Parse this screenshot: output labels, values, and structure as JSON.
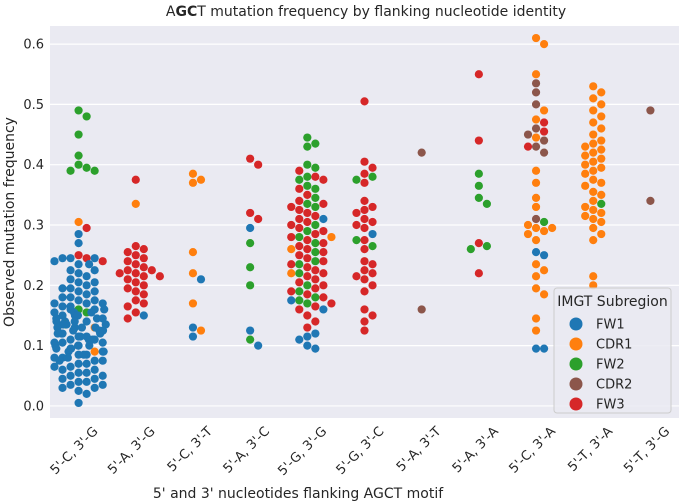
{
  "chart_data": {
    "type": "scatter",
    "subtype": "swarm",
    "title_prefix": "A",
    "title_bold": "GC",
    "title_suffix": "T mutation frequency by flanking nucleotide identity",
    "xlabel": "5' and 3' nucleotides flanking AGCT motif",
    "ylabel": "Observed mutation frequency",
    "ylim": [
      -0.02,
      0.63
    ],
    "yticks": [
      0.0,
      0.1,
      0.2,
      0.3,
      0.4,
      0.5,
      0.6
    ],
    "ytick_labels": [
      "0.0",
      "0.1",
      "0.2",
      "0.3",
      "0.4",
      "0.5",
      "0.6"
    ],
    "categories": [
      "5'-C, 3'-G",
      "5'-A, 3'-G",
      "5'-C, 3'-T",
      "5'-A, 3'-C",
      "5'-G, 3'-G",
      "5'-G, 3'-C",
      "5'-A, 3'-T",
      "5'-A, 3'-A",
      "5'-C, 3'-A",
      "5'-T, 3'-A",
      "5'-T, 3'-G"
    ],
    "legend": {
      "title": "IMGT Subregion",
      "position": "lower-right",
      "entries": [
        {
          "name": "FW1",
          "color": "#1f77b4"
        },
        {
          "name": "CDR1",
          "color": "#ff7f0e"
        },
        {
          "name": "FW2",
          "color": "#2ca02c"
        },
        {
          "name": "CDR2",
          "color": "#8c564b"
        },
        {
          "name": "FW3",
          "color": "#d62728"
        }
      ]
    },
    "grid": true,
    "background": "#eaeaf2",
    "groups": [
      {
        "category": "5'-C, 3'-G",
        "points": [
          {
            "s": "FW2",
            "y": [
              0.49,
              0.48,
              0.45,
              0.415,
              0.4,
              0.395,
              0.39,
              0.39,
              0.16,
              0.155,
              0.135
            ]
          },
          {
            "s": "CDR1",
            "y": [
              0.305,
              0.13,
              0.09
            ]
          },
          {
            "s": "FW3",
            "y": [
              0.295,
              0.25,
              0.245,
              0.24
            ]
          },
          {
            "s": "FW1",
            "y": [
              0.285,
              0.27,
              0.245,
              0.245,
              0.245,
              0.24,
              0.235,
              0.235,
              0.225,
              0.225,
              0.22,
              0.215,
              0.21,
              0.205,
              0.205,
              0.2,
              0.195,
              0.195,
              0.19,
              0.19,
              0.185,
              0.18,
              0.18,
              0.175,
              0.175,
              0.17,
              0.17,
              0.17,
              0.165,
              0.165,
              0.16,
              0.16,
              0.16,
              0.155,
              0.155,
              0.155,
              0.15,
              0.15,
              0.15,
              0.15,
              0.145,
              0.145,
              0.145,
              0.14,
              0.14,
              0.14,
              0.14,
              0.135,
              0.135,
              0.135,
              0.13,
              0.13,
              0.13,
              0.13,
              0.125,
              0.125,
              0.125,
              0.12,
              0.12,
              0.12,
              0.12,
              0.115,
              0.115,
              0.115,
              0.11,
              0.11,
              0.11,
              0.11,
              0.105,
              0.105,
              0.105,
              0.1,
              0.1,
              0.1,
              0.1,
              0.095,
              0.095,
              0.095,
              0.09,
              0.09,
              0.09,
              0.085,
              0.085,
              0.085,
              0.08,
              0.08,
              0.08,
              0.075,
              0.075,
              0.075,
              0.07,
              0.07,
              0.065,
              0.065,
              0.06,
              0.06,
              0.055,
              0.055,
              0.05,
              0.05,
              0.045,
              0.045,
              0.04,
              0.04,
              0.035,
              0.035,
              0.03,
              0.03,
              0.025,
              0.02,
              0.005
            ]
          }
        ]
      },
      {
        "category": "5'-A, 3'-G",
        "points": [
          {
            "s": "FW3",
            "y": [
              0.375,
              0.265,
              0.26,
              0.255,
              0.25,
              0.245,
              0.24,
              0.235,
              0.23,
              0.225,
              0.225,
              0.22,
              0.22,
              0.215,
              0.215,
              0.21,
              0.205,
              0.2,
              0.195,
              0.19,
              0.185,
              0.175,
              0.17,
              0.165,
              0.155,
              0.145
            ]
          },
          {
            "s": "CDR1",
            "y": [
              0.335
            ]
          },
          {
            "s": "FW1",
            "y": [
              0.15
            ]
          }
        ]
      },
      {
        "category": "5'-C, 3'-T",
        "points": [
          {
            "s": "CDR1",
            "y": [
              0.385,
              0.375,
              0.37,
              0.255,
              0.22,
              0.17,
              0.125
            ]
          },
          {
            "s": "FW1",
            "y": [
              0.21,
              0.13,
              0.115
            ]
          }
        ]
      },
      {
        "category": "5'-A, 3'-C",
        "points": [
          {
            "s": "FW3",
            "y": [
              0.41,
              0.4,
              0.32,
              0.31
            ]
          },
          {
            "s": "FW1",
            "y": [
              0.295,
              0.125,
              0.1
            ]
          },
          {
            "s": "FW2",
            "y": [
              0.27,
              0.23,
              0.2,
              0.11
            ]
          }
        ]
      },
      {
        "category": "5'-G, 3'-G",
        "points": [
          {
            "s": "FW2",
            "y": [
              0.445,
              0.435,
              0.43,
              0.4,
              0.395,
              0.38,
              0.375,
              0.365,
              0.36,
              0.345,
              0.335,
              0.33,
              0.3,
              0.29,
              0.28,
              0.27,
              0.255,
              0.24,
              0.235,
              0.22,
              0.2,
              0.19,
              0.18,
              0.175,
              0.17
            ]
          },
          {
            "s": "FW3",
            "y": [
              0.39,
              0.38,
              0.375,
              0.36,
              0.35,
              0.34,
              0.335,
              0.33,
              0.325,
              0.32,
              0.315,
              0.31,
              0.305,
              0.3,
              0.295,
              0.29,
              0.285,
              0.28,
              0.275,
              0.27,
              0.265,
              0.26,
              0.255,
              0.25,
              0.245,
              0.24,
              0.235,
              0.23,
              0.225,
              0.22,
              0.215,
              0.21,
              0.205,
              0.2,
              0.195,
              0.19,
              0.185,
              0.18,
              0.17,
              0.165,
              0.16,
              0.15,
              0.14,
              0.13
            ]
          },
          {
            "s": "CDR1",
            "y": [
              0.28,
              0.26,
              0.22
            ]
          },
          {
            "s": "FW1",
            "y": [
              0.31,
              0.175,
              0.16,
              0.12,
              0.115,
              0.11,
              0.1,
              0.095
            ]
          }
        ]
      },
      {
        "category": "5'-G, 3'-C",
        "points": [
          {
            "s": "FW3",
            "y": [
              0.505,
              0.405,
              0.395,
              0.385,
              0.37,
              0.34,
              0.33,
              0.325,
              0.32,
              0.31,
              0.305,
              0.3,
              0.295,
              0.275,
              0.26,
              0.24,
              0.235,
              0.225,
              0.22,
              0.215,
              0.21,
              0.2,
              0.19,
              0.16,
              0.15,
              0.14,
              0.125
            ]
          },
          {
            "s": "FW2",
            "y": [
              0.38,
              0.375,
              0.275,
              0.265
            ]
          },
          {
            "s": "FW1",
            "y": [
              0.285
            ]
          }
        ]
      },
      {
        "category": "5'-A, 3'-T",
        "points": [
          {
            "s": "CDR2",
            "y": [
              0.42,
              0.16
            ]
          }
        ]
      },
      {
        "category": "5'-A, 3'-A",
        "points": [
          {
            "s": "FW3",
            "y": [
              0.55,
              0.44,
              0.27,
              0.22
            ]
          },
          {
            "s": "FW2",
            "y": [
              0.385,
              0.365,
              0.345,
              0.335,
              0.265,
              0.26
            ]
          }
        ]
      },
      {
        "category": "5'-C, 3'-A",
        "points": [
          {
            "s": "CDR1",
            "y": [
              0.61,
              0.6,
              0.55,
              0.49,
              0.475,
              0.445,
              0.39,
              0.37,
              0.345,
              0.33,
              0.3,
              0.295,
              0.295,
              0.29,
              0.285,
              0.275,
              0.235,
              0.225,
              0.215,
              0.195,
              0.185,
              0.145,
              0.125
            ]
          },
          {
            "s": "CDR2",
            "y": [
              0.535,
              0.52,
              0.5,
              0.46,
              0.45,
              0.44,
              0.43,
              0.42,
              0.31
            ]
          },
          {
            "s": "FW3",
            "y": [
              0.47,
              0.455,
              0.43
            ]
          },
          {
            "s": "FW2",
            "y": [
              0.305
            ]
          },
          {
            "s": "FW1",
            "y": [
              0.255,
              0.25,
              0.095,
              0.095
            ]
          }
        ]
      },
      {
        "category": "5'-T, 3'-A",
        "points": [
          {
            "s": "CDR1",
            "y": [
              0.53,
              0.52,
              0.51,
              0.5,
              0.49,
              0.48,
              0.47,
              0.46,
              0.45,
              0.44,
              0.435,
              0.43,
              0.425,
              0.42,
              0.415,
              0.41,
              0.405,
              0.4,
              0.395,
              0.39,
              0.385,
              0.375,
              0.37,
              0.365,
              0.355,
              0.35,
              0.34,
              0.33,
              0.325,
              0.32,
              0.315,
              0.31,
              0.305,
              0.295,
              0.285,
              0.275,
              0.215,
              0.2
            ]
          },
          {
            "s": "FW2",
            "y": [
              0.335
            ]
          }
        ]
      },
      {
        "category": "5'-T, 3'-G",
        "points": [
          {
            "s": "CDR2",
            "y": [
              0.49,
              0.34
            ]
          }
        ]
      }
    ]
  }
}
